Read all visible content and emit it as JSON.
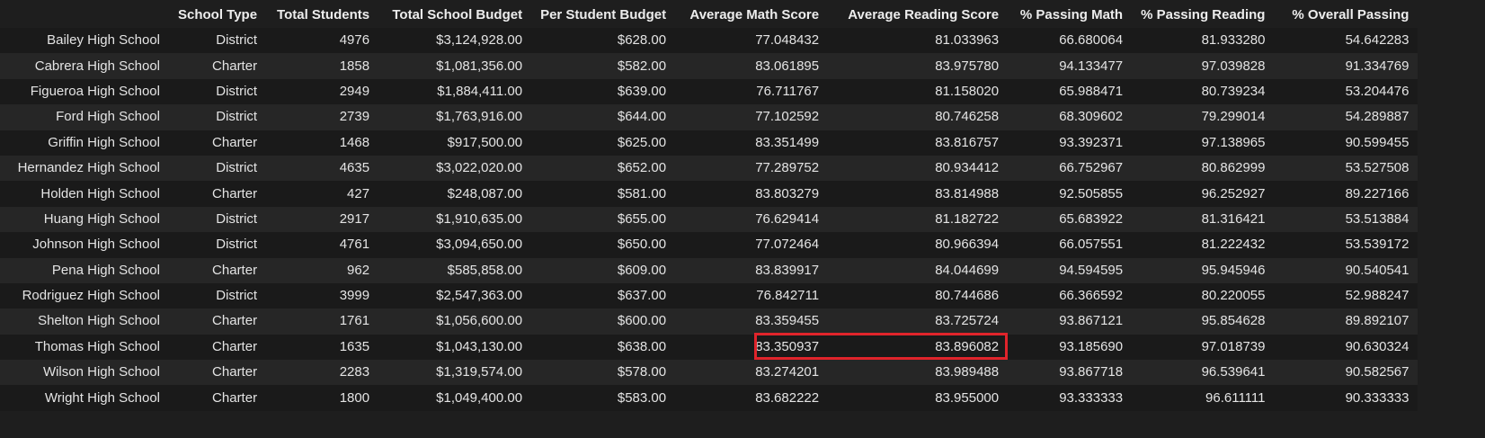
{
  "table": {
    "index_header": "",
    "columns": [
      "School Type",
      "Total Students",
      "Total School Budget",
      "Per Student Budget",
      "Average Math Score",
      "Average Reading Score",
      "% Passing Math",
      "% Passing Reading",
      "% Overall Passing"
    ],
    "rows": [
      {
        "school": "Bailey High School",
        "cells": [
          "District",
          "4976",
          "$3,124,928.00",
          "$628.00",
          "77.048432",
          "81.033963",
          "66.680064",
          "81.933280",
          "54.642283"
        ]
      },
      {
        "school": "Cabrera High School",
        "cells": [
          "Charter",
          "1858",
          "$1,081,356.00",
          "$582.00",
          "83.061895",
          "83.975780",
          "94.133477",
          "97.039828",
          "91.334769"
        ]
      },
      {
        "school": "Figueroa High School",
        "cells": [
          "District",
          "2949",
          "$1,884,411.00",
          "$639.00",
          "76.711767",
          "81.158020",
          "65.988471",
          "80.739234",
          "53.204476"
        ]
      },
      {
        "school": "Ford High School",
        "cells": [
          "District",
          "2739",
          "$1,763,916.00",
          "$644.00",
          "77.102592",
          "80.746258",
          "68.309602",
          "79.299014",
          "54.289887"
        ]
      },
      {
        "school": "Griffin High School",
        "cells": [
          "Charter",
          "1468",
          "$917,500.00",
          "$625.00",
          "83.351499",
          "83.816757",
          "93.392371",
          "97.138965",
          "90.599455"
        ]
      },
      {
        "school": "Hernandez High School",
        "cells": [
          "District",
          "4635",
          "$3,022,020.00",
          "$652.00",
          "77.289752",
          "80.934412",
          "66.752967",
          "80.862999",
          "53.527508"
        ]
      },
      {
        "school": "Holden High School",
        "cells": [
          "Charter",
          "427",
          "$248,087.00",
          "$581.00",
          "83.803279",
          "83.814988",
          "92.505855",
          "96.252927",
          "89.227166"
        ]
      },
      {
        "school": "Huang High School",
        "cells": [
          "District",
          "2917",
          "$1,910,635.00",
          "$655.00",
          "76.629414",
          "81.182722",
          "65.683922",
          "81.316421",
          "53.513884"
        ]
      },
      {
        "school": "Johnson High School",
        "cells": [
          "District",
          "4761",
          "$3,094,650.00",
          "$650.00",
          "77.072464",
          "80.966394",
          "66.057551",
          "81.222432",
          "53.539172"
        ]
      },
      {
        "school": "Pena High School",
        "cells": [
          "Charter",
          "962",
          "$585,858.00",
          "$609.00",
          "83.839917",
          "84.044699",
          "94.594595",
          "95.945946",
          "90.540541"
        ]
      },
      {
        "school": "Rodriguez High School",
        "cells": [
          "District",
          "3999",
          "$2,547,363.00",
          "$637.00",
          "76.842711",
          "80.744686",
          "66.366592",
          "80.220055",
          "52.988247"
        ]
      },
      {
        "school": "Shelton High School",
        "cells": [
          "Charter",
          "1761",
          "$1,056,600.00",
          "$600.00",
          "83.359455",
          "83.725724",
          "93.867121",
          "95.854628",
          "89.892107"
        ]
      },
      {
        "school": "Thomas High School",
        "cells": [
          "Charter",
          "1635",
          "$1,043,130.00",
          "$638.00",
          "83.350937",
          "83.896082",
          "93.185690",
          "97.018739",
          "90.630324"
        ]
      },
      {
        "school": "Wilson High School",
        "cells": [
          "Charter",
          "2283",
          "$1,319,574.00",
          "$578.00",
          "83.274201",
          "83.989488",
          "93.867718",
          "96.539641",
          "90.582567"
        ]
      },
      {
        "school": "Wright High School",
        "cells": [
          "Charter",
          "1800",
          "$1,049,400.00",
          "$583.00",
          "83.682222",
          "83.955000",
          "93.333333",
          "96.611111",
          "90.333333"
        ]
      }
    ]
  },
  "colors": {
    "background": "#1e1e1e",
    "row_odd": "#1a1a1a",
    "row_even": "#262626",
    "highlight_border": "#e0242b"
  }
}
